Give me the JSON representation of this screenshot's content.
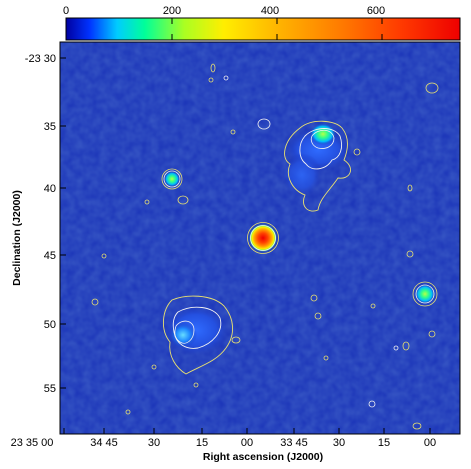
{
  "colorbar": {
    "tick_labels": [
      "0",
      "200",
      "400",
      "600"
    ],
    "tick_values": [
      0,
      200,
      400,
      600
    ],
    "range": [
      0,
      750
    ],
    "colormap": [
      "#0000a0",
      "#0033ff",
      "#00ccff",
      "#00ff99",
      "#88ff22",
      "#ffee00",
      "#ffbb00",
      "#ff8800",
      "#ff4400",
      "#ee0000"
    ]
  },
  "axes": {
    "xlabel": "Right ascension (J2000)",
    "ylabel": "Declination (J2000)",
    "x_tick_labels": [
      "23 35 00",
      "34 45",
      "30",
      "15",
      "00",
      "33 45",
      "30",
      "15",
      "00"
    ],
    "y_tick_labels": [
      "-23 30",
      "35",
      "40",
      "45",
      "50",
      "55"
    ]
  },
  "colors": {
    "background_field": "#1a33b8",
    "contour_yellow": "#e8e070",
    "contour_white": "#f2f2f2"
  }
}
